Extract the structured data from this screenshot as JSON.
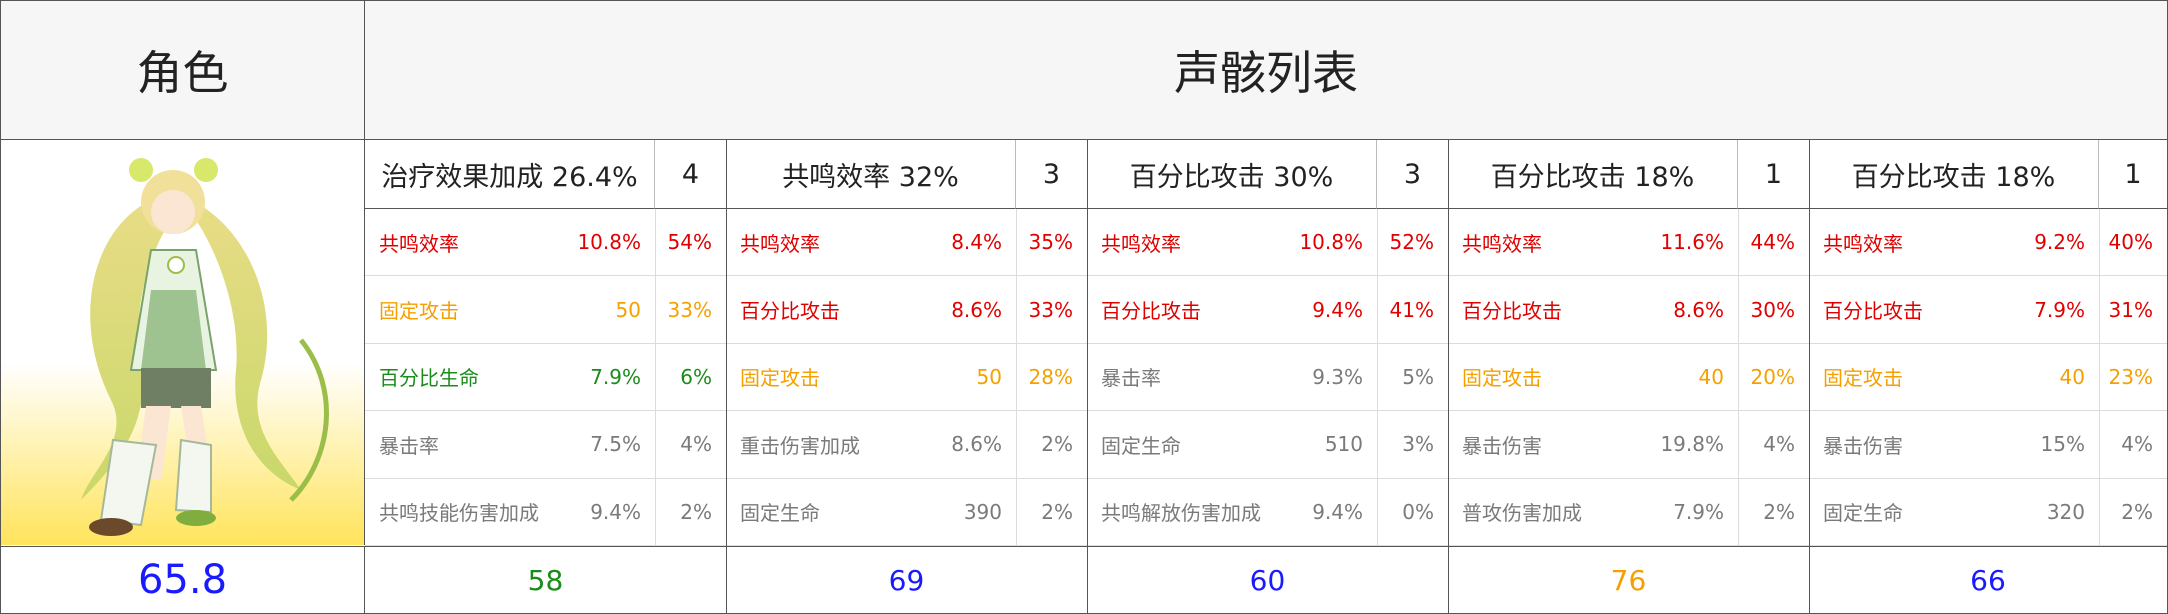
{
  "header": {
    "role_label": "角色",
    "list_label": "声骸列表"
  },
  "character": {
    "total_score": "65.8",
    "total_score_color": "#1a1aff"
  },
  "colors": {
    "red": "#e00000",
    "orange": "#f5a000",
    "green": "#1a8c1a",
    "gray": "#7a7a7a",
    "blue": "#1a1aff"
  },
  "echoes": [
    {
      "main_stat": "治疗效果加成 26.4%",
      "cost": "4",
      "score": "58",
      "score_color": "green",
      "substats": [
        {
          "name": "共鸣效率",
          "value": "10.8%",
          "pct": "54%",
          "color": "red"
        },
        {
          "name": "固定攻击",
          "value": "50",
          "pct": "33%",
          "color": "orange"
        },
        {
          "name": "百分比生命",
          "value": "7.9%",
          "pct": "6%",
          "color": "green"
        },
        {
          "name": "暴击率",
          "value": "7.5%",
          "pct": "4%",
          "color": "gray"
        },
        {
          "name": "共鸣技能伤害加成",
          "value": "9.4%",
          "pct": "2%",
          "color": "gray"
        }
      ]
    },
    {
      "main_stat": "共鸣效率 32%",
      "cost": "3",
      "score": "69",
      "score_color": "blue",
      "substats": [
        {
          "name": "共鸣效率",
          "value": "8.4%",
          "pct": "35%",
          "color": "red"
        },
        {
          "name": "百分比攻击",
          "value": "8.6%",
          "pct": "33%",
          "color": "red"
        },
        {
          "name": "固定攻击",
          "value": "50",
          "pct": "28%",
          "color": "orange"
        },
        {
          "name": "重击伤害加成",
          "value": "8.6%",
          "pct": "2%",
          "color": "gray"
        },
        {
          "name": "固定生命",
          "value": "390",
          "pct": "2%",
          "color": "gray"
        }
      ]
    },
    {
      "main_stat": "百分比攻击 30%",
      "cost": "3",
      "score": "60",
      "score_color": "blue",
      "substats": [
        {
          "name": "共鸣效率",
          "value": "10.8%",
          "pct": "52%",
          "color": "red"
        },
        {
          "name": "百分比攻击",
          "value": "9.4%",
          "pct": "41%",
          "color": "red"
        },
        {
          "name": "暴击率",
          "value": "9.3%",
          "pct": "5%",
          "color": "gray"
        },
        {
          "name": "固定生命",
          "value": "510",
          "pct": "3%",
          "color": "gray"
        },
        {
          "name": "共鸣解放伤害加成",
          "value": "9.4%",
          "pct": "0%",
          "color": "gray"
        }
      ]
    },
    {
      "main_stat": "百分比攻击 18%",
      "cost": "1",
      "score": "76",
      "score_color": "orange",
      "substats": [
        {
          "name": "共鸣效率",
          "value": "11.6%",
          "pct": "44%",
          "color": "red"
        },
        {
          "name": "百分比攻击",
          "value": "8.6%",
          "pct": "30%",
          "color": "red"
        },
        {
          "name": "固定攻击",
          "value": "40",
          "pct": "20%",
          "color": "orange"
        },
        {
          "name": "暴击伤害",
          "value": "19.8%",
          "pct": "4%",
          "color": "gray"
        },
        {
          "name": "普攻伤害加成",
          "value": "7.9%",
          "pct": "2%",
          "color": "gray"
        }
      ]
    },
    {
      "main_stat": "百分比攻击 18%",
      "cost": "1",
      "score": "66",
      "score_color": "blue",
      "substats": [
        {
          "name": "共鸣效率",
          "value": "9.2%",
          "pct": "40%",
          "color": "red"
        },
        {
          "name": "百分比攻击",
          "value": "7.9%",
          "pct": "31%",
          "color": "red"
        },
        {
          "name": "固定攻击",
          "value": "40",
          "pct": "23%",
          "color": "orange"
        },
        {
          "name": "暴击伤害",
          "value": "15%",
          "pct": "4%",
          "color": "gray"
        },
        {
          "name": "固定生命",
          "value": "320",
          "pct": "2%",
          "color": "gray"
        }
      ]
    }
  ]
}
